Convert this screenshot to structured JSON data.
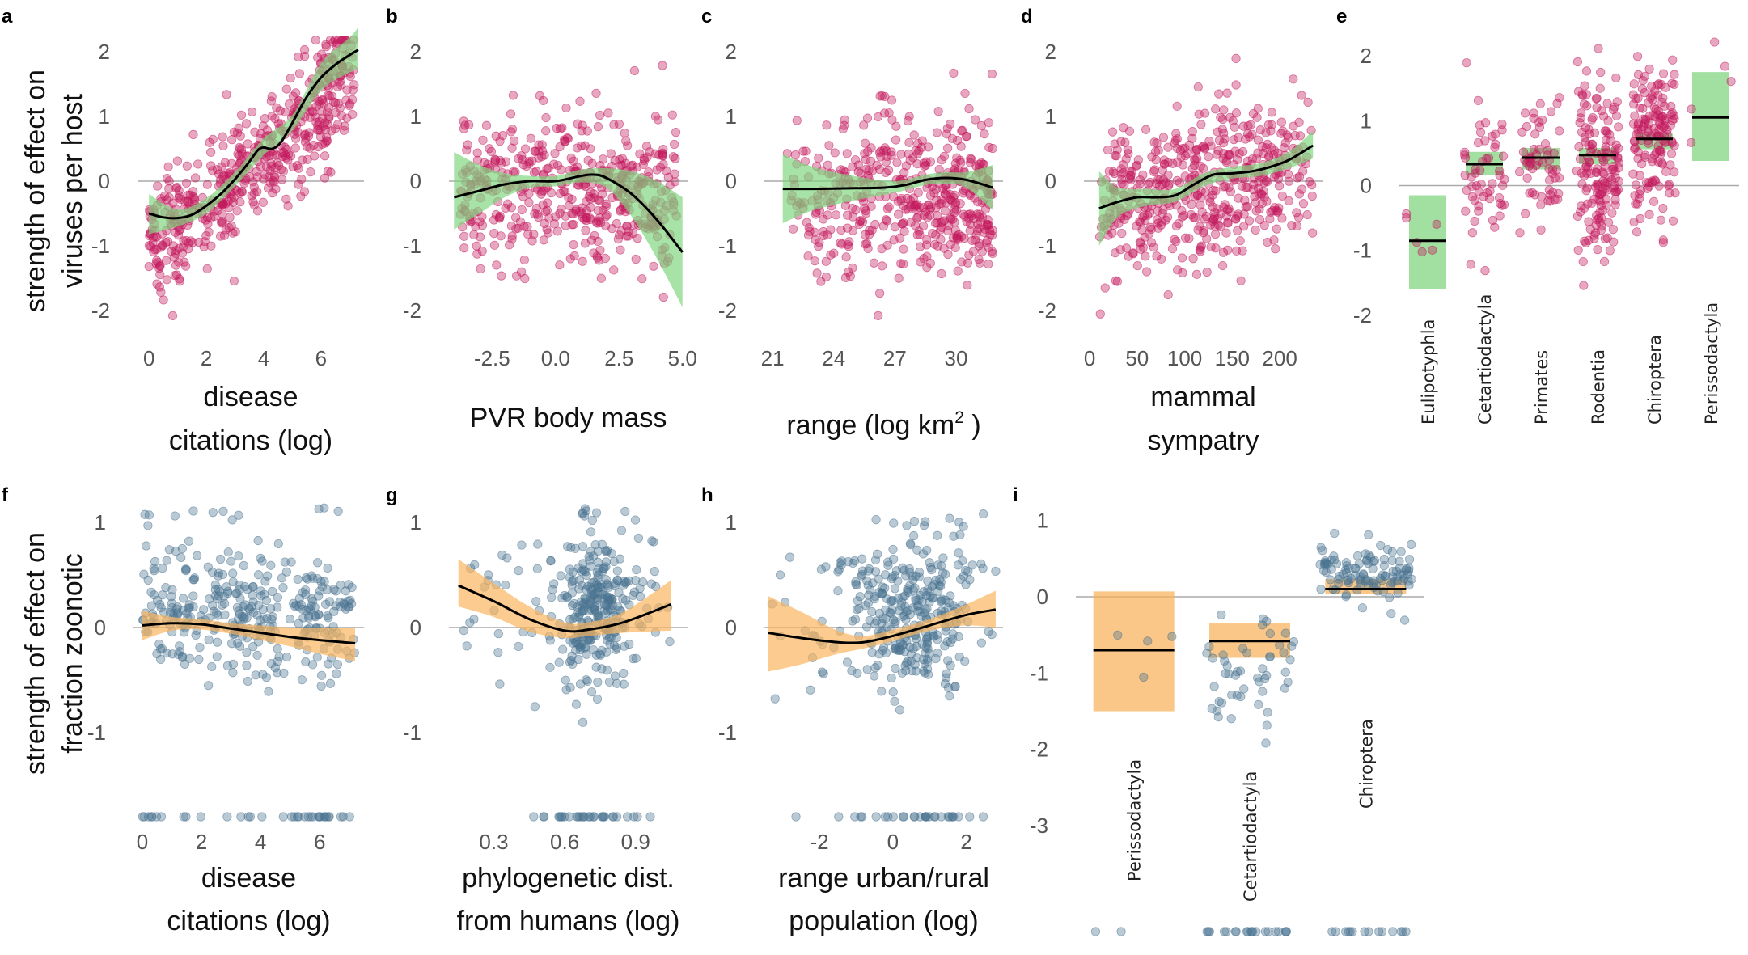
{
  "colors": {
    "top_points": "#c2185b",
    "top_band": "#7ed47e",
    "bottom_points": "#4a7390",
    "bottom_band": "#f9b25a",
    "fit_line": "#000000",
    "zero_line": "#aaaaaa"
  },
  "row_labels": {
    "top": [
      "strength of effect on",
      "viruses per host"
    ],
    "bottom": [
      "strength of effect on",
      "fraction zoonotic"
    ]
  },
  "chart_data": [
    {
      "id": "a",
      "panel_label": "a",
      "type": "scatter",
      "row": "top",
      "xlabel_lines": [
        "disease",
        "citations (log)"
      ],
      "xlim": [
        -0.4,
        7.5
      ],
      "ylim": [
        -2.2,
        2.3
      ],
      "xticks": [
        0,
        2,
        4,
        6
      ],
      "xtick_labels": [
        "0",
        "2",
        "4",
        "6"
      ],
      "yticks": [
        -2,
        -1,
        0,
        1,
        2
      ],
      "ytick_labels": [
        "-2",
        "-1",
        "0",
        "1",
        "2"
      ],
      "fit": {
        "x": [
          0,
          0.5,
          1,
          1.5,
          2,
          2.5,
          3,
          3.5,
          3.8,
          4,
          4.3,
          4.6,
          5,
          5.5,
          6,
          6.5,
          7,
          7.3
        ],
        "y": [
          -0.5,
          -0.56,
          -0.57,
          -0.52,
          -0.38,
          -0.2,
          0.03,
          0.3,
          0.48,
          0.52,
          0.5,
          0.6,
          0.9,
          1.3,
          1.6,
          1.8,
          1.95,
          2.03
        ]
      },
      "band": {
        "x": [
          0,
          1,
          2,
          3,
          4,
          5,
          6,
          7,
          7.3
        ],
        "lower": [
          -0.82,
          -0.7,
          -0.5,
          -0.08,
          0.4,
          0.78,
          1.4,
          1.68,
          1.72
        ],
        "upper": [
          -0.2,
          -0.44,
          -0.26,
          0.14,
          0.66,
          1.02,
          1.82,
          2.22,
          2.38
        ]
      },
      "scatter_trend": {
        "x": [
          0,
          1,
          2,
          3,
          4,
          5,
          6,
          7
        ],
        "y": [
          -0.9,
          -0.75,
          -0.45,
          -0.05,
          0.35,
          0.85,
          1.3,
          1.6
        ]
      },
      "scatter": {
        "n": 520,
        "x_range": [
          0,
          7.2
        ],
        "spread": 0.5
      }
    },
    {
      "id": "b",
      "panel_label": "b",
      "type": "scatter",
      "row": "top",
      "xlabel_lines": [
        "PVR body mass"
      ],
      "xlim": [
        -4.2,
        5.2
      ],
      "ylim": [
        -2.2,
        2.3
      ],
      "xticks": [
        -2.5,
        0.0,
        2.5,
        5.0
      ],
      "xtick_labels": [
        "-2.5",
        "0.0",
        "2.5",
        "5.0"
      ],
      "yticks": [
        -2,
        -1,
        0,
        1,
        2
      ],
      "ytick_labels": [
        "-2",
        "-1",
        "0",
        "1",
        "2"
      ],
      "fit": {
        "x": [
          -4,
          -3,
          -2,
          -1,
          0,
          1,
          1.5,
          2,
          3,
          4,
          5
        ],
        "y": [
          -0.25,
          -0.15,
          -0.05,
          0.0,
          0.0,
          0.08,
          0.1,
          0.05,
          -0.2,
          -0.6,
          -1.1
        ]
      },
      "band": {
        "x": [
          -4,
          -3,
          -2,
          -1,
          0,
          1,
          2,
          3,
          4,
          5
        ],
        "lower": [
          -0.75,
          -0.5,
          -0.25,
          -0.1,
          -0.08,
          -0.02,
          -0.1,
          -0.55,
          -1.2,
          -1.95
        ],
        "upper": [
          0.45,
          0.25,
          0.12,
          0.08,
          0.08,
          0.18,
          0.2,
          0.15,
          0.0,
          -0.25
        ]
      },
      "scatter_trend": {
        "x": [
          -3,
          -1,
          0,
          1,
          3
        ],
        "y": [
          -0.1,
          -0.1,
          -0.15,
          -0.05,
          -0.2
        ]
      },
      "scatter": {
        "n": 480,
        "x_range": [
          -3.8,
          4.8
        ],
        "spread": 0.6
      }
    },
    {
      "id": "c",
      "panel_label": "c",
      "type": "scatter",
      "row": "top",
      "xlabel": "range (log km",
      "xlabel_sup": "2",
      "xlabel_tail": " )",
      "xlim": [
        20.6,
        32.3
      ],
      "ylim": [
        -2.2,
        2.3
      ],
      "xticks": [
        21,
        24,
        27,
        30
      ],
      "xtick_labels": [
        "21",
        "24",
        "27",
        "30"
      ],
      "yticks": [
        -2,
        -1,
        0,
        1,
        2
      ],
      "ytick_labels": [
        "-2",
        "-1",
        "0",
        "1",
        "2"
      ],
      "fit": {
        "x": [
          21.5,
          23,
          25,
          26.5,
          27.5,
          28.5,
          29.5,
          30.5,
          31.8
        ],
        "y": [
          -0.12,
          -0.12,
          -0.11,
          -0.1,
          -0.06,
          0.02,
          0.05,
          0.02,
          -0.1
        ]
      },
      "band": {
        "x": [
          21.5,
          23,
          25,
          27,
          28.5,
          29.5,
          30.5,
          31.8
        ],
        "lower": [
          -0.65,
          -0.45,
          -0.3,
          -0.18,
          -0.06,
          -0.04,
          -0.1,
          -0.45
        ],
        "upper": [
          0.42,
          0.22,
          0.08,
          0.0,
          0.1,
          0.14,
          0.14,
          0.25
        ]
      },
      "scatter_trend": {
        "x": [
          21.5,
          25,
          28,
          30,
          31.5
        ],
        "y": [
          -0.2,
          -0.2,
          -0.2,
          -0.25,
          -0.3
        ]
      },
      "scatter": {
        "n": 480,
        "x_range": [
          21.5,
          31.8
        ],
        "spread": 0.6,
        "x_skew": 0.65
      }
    },
    {
      "id": "d",
      "panel_label": "d",
      "type": "scatter",
      "row": "top",
      "xlabel_lines": [
        "mammal",
        "sympatry"
      ],
      "xlim": [
        -6,
        245
      ],
      "ylim": [
        -2.2,
        2.3
      ],
      "xticks": [
        0,
        50,
        100,
        150,
        200
      ],
      "xtick_labels": [
        "0",
        "50",
        "100",
        "150",
        "200"
      ],
      "yticks": [
        -2,
        -1,
        0,
        1,
        2
      ],
      "ytick_labels": [
        "-2",
        "-1",
        "0",
        "1",
        "2"
      ],
      "fit": {
        "x": [
          10,
          30,
          50,
          70,
          90,
          110,
          130,
          150,
          170,
          190,
          210,
          235
        ],
        "y": [
          -0.42,
          -0.32,
          -0.25,
          -0.25,
          -0.22,
          -0.05,
          0.1,
          0.12,
          0.15,
          0.22,
          0.33,
          0.55
        ]
      },
      "band": {
        "x": [
          10,
          30,
          60,
          90,
          120,
          150,
          180,
          210,
          235
        ],
        "lower": [
          -1.0,
          -0.55,
          -0.38,
          -0.32,
          -0.08,
          0.04,
          0.08,
          0.2,
          0.35
        ],
        "upper": [
          0.15,
          -0.1,
          -0.12,
          -0.12,
          0.12,
          0.22,
          0.28,
          0.46,
          0.78
        ]
      },
      "scatter_trend": {
        "x": [
          10,
          60,
          110,
          160,
          210,
          235
        ],
        "y": [
          -0.3,
          -0.35,
          -0.1,
          0.0,
          0.2,
          0.3
        ]
      },
      "scatter": {
        "n": 500,
        "x_range": [
          10,
          235
        ],
        "spread": 0.6
      }
    },
    {
      "id": "e",
      "panel_label": "e",
      "type": "categorical",
      "row": "top",
      "ylim": [
        -2.25,
        2.3
      ],
      "yticks": [
        -2,
        -1,
        0,
        1,
        2
      ],
      "ytick_labels": [
        "-2",
        "-1",
        "0",
        "1",
        "2"
      ],
      "categories": [
        "Eulipotyphla",
        "Cetartiodactyla",
        "Primates",
        "Rodentia",
        "Chiroptera",
        "Perissodactyla"
      ],
      "estimates": [
        -0.85,
        0.33,
        0.43,
        0.47,
        0.72,
        1.05
      ],
      "lower": [
        -1.6,
        0.16,
        0.25,
        0.33,
        0.56,
        0.38
      ],
      "upper": [
        -0.15,
        0.52,
        0.58,
        0.58,
        0.8,
        1.75
      ],
      "point_counts": [
        6,
        55,
        60,
        160,
        150,
        5
      ],
      "point_spread": [
        0.3,
        0.6,
        0.5,
        0.7,
        0.65,
        0.45
      ],
      "point_offset": [
        0.05,
        -0.1,
        0.0,
        -0.15,
        0.0,
        0.0
      ]
    },
    {
      "id": "f",
      "panel_label": "f",
      "type": "scatter",
      "row": "bottom",
      "xlabel_lines": [
        "disease",
        "citations (log)"
      ],
      "xlim": [
        -0.3,
        7.5
      ],
      "ylim": [
        -1.8,
        1.2
      ],
      "xticks": [
        0,
        2,
        4,
        6
      ],
      "xtick_labels": [
        "0",
        "2",
        "4",
        "6"
      ],
      "yticks": [
        -1,
        0,
        1
      ],
      "ytick_labels": [
        "-1",
        "0",
        "1"
      ],
      "fit": {
        "x": [
          0,
          1,
          2,
          3,
          4,
          5,
          6,
          7.2
        ],
        "y": [
          0.02,
          0.04,
          0.03,
          -0.01,
          -0.05,
          -0.09,
          -0.12,
          -0.15
        ]
      },
      "band": {
        "x": [
          0,
          1,
          2,
          3,
          4,
          5,
          6,
          7.2
        ],
        "lower": [
          -0.12,
          -0.03,
          -0.02,
          -0.06,
          -0.12,
          -0.18,
          -0.25,
          -0.32
        ],
        "upper": [
          0.16,
          0.1,
          0.08,
          0.04,
          0.02,
          0.0,
          0.0,
          0.0
        ]
      },
      "scatter_trend": {
        "x": [
          0,
          3,
          7
        ],
        "y": [
          0.2,
          0.15,
          0.05
        ]
      },
      "scatter": {
        "n": 340,
        "x_range": [
          0,
          7.2
        ],
        "spread": 0.3
      },
      "floor_value": -1.8,
      "floor_count": 35,
      "top_value": 1.1,
      "top_count": 10
    },
    {
      "id": "g",
      "panel_label": "g",
      "type": "scatter",
      "row": "bottom",
      "xlabel_lines": [
        "phylogenetic dist.",
        "from humans (log)"
      ],
      "xlim": [
        0.11,
        1.12
      ],
      "ylim": [
        -1.8,
        1.2
      ],
      "xticks": [
        0.3,
        0.6,
        0.9
      ],
      "xtick_labels": [
        "0.3",
        "0.6",
        "0.9"
      ],
      "yticks": [
        -1,
        0,
        1
      ],
      "ytick_labels": [
        "-1",
        "0",
        "1"
      ],
      "fit": {
        "x": [
          0.15,
          0.3,
          0.45,
          0.6,
          0.7,
          0.85,
          1.05
        ],
        "y": [
          0.4,
          0.25,
          0.08,
          -0.03,
          -0.02,
          0.05,
          0.22
        ]
      },
      "band": {
        "x": [
          0.15,
          0.3,
          0.45,
          0.6,
          0.7,
          0.85,
          1.05
        ],
        "lower": [
          0.2,
          0.1,
          -0.04,
          -0.1,
          -0.08,
          -0.05,
          -0.03
        ],
        "upper": [
          0.65,
          0.42,
          0.2,
          0.05,
          0.05,
          0.15,
          0.45
        ]
      },
      "scatter_trend": {
        "x": [
          0.3,
          0.7,
          0.9
        ],
        "y": [
          0.2,
          0.1,
          0.2
        ]
      },
      "scatter": {
        "n": 320,
        "x_range": [
          0.15,
          1.05
        ],
        "spread": 0.35,
        "x_center": 0.72,
        "x_center_spread": 0.07
      },
      "floor_value": -1.8,
      "floor_count": 30,
      "top_value": 1.1,
      "top_count": 6
    },
    {
      "id": "h",
      "panel_label": "h",
      "type": "scatter",
      "row": "bottom",
      "xlabel_lines": [
        "range urban/rural",
        "population (log)"
      ],
      "xlim": [
        -3.5,
        3.0
      ],
      "ylim": [
        -1.8,
        1.2
      ],
      "xticks": [
        -2,
        0,
        2
      ],
      "xtick_labels": [
        "-2",
        "0",
        "2"
      ],
      "yticks": [
        -1,
        0,
        1
      ],
      "ytick_labels": [
        "-1",
        "0",
        "1"
      ],
      "fit": {
        "x": [
          -3.4,
          -2.5,
          -1.5,
          -0.8,
          0,
          1,
          2,
          2.8
        ],
        "y": [
          -0.05,
          -0.1,
          -0.14,
          -0.14,
          -0.08,
          0.02,
          0.12,
          0.17
        ]
      },
      "band": {
        "x": [
          -3.4,
          -2.5,
          -1.5,
          -0.8,
          0,
          1,
          2,
          2.8
        ],
        "lower": [
          -0.42,
          -0.35,
          -0.25,
          -0.2,
          -0.13,
          -0.03,
          0.02,
          0.0
        ],
        "upper": [
          0.3,
          0.15,
          -0.03,
          -0.08,
          -0.02,
          0.08,
          0.22,
          0.35
        ]
      },
      "scatter_trend": {
        "x": [
          -3,
          0,
          2.5
        ],
        "y": [
          0.1,
          0.1,
          0.2
        ]
      },
      "scatter": {
        "n": 330,
        "x_range": [
          -3.3,
          2.8
        ],
        "spread": 0.35,
        "x_center": 0.4,
        "x_center_spread": 0.9
      },
      "floor_value": -1.8,
      "floor_count": 30,
      "top_value": 1.0,
      "top_count": 8
    },
    {
      "id": "i",
      "panel_label": "i",
      "type": "categorical",
      "row": "bottom",
      "ylim": [
        -3.2,
        1.25
      ],
      "yticks": [
        -3,
        -2,
        -1,
        0,
        1
      ],
      "ytick_labels": [
        "-3",
        "-2",
        "-1",
        "0",
        "1"
      ],
      "categories": [
        "Perissodactyla",
        "Cetartiodactyla",
        "Chiroptera"
      ],
      "estimates": [
        -0.7,
        -0.58,
        0.1
      ],
      "lower": [
        -1.5,
        -0.8,
        0.04
      ],
      "upper": [
        0.07,
        -0.35,
        0.23
      ],
      "point_counts": [
        4,
        50,
        110
      ],
      "point_spread": [
        0.5,
        0.45,
        0.18
      ],
      "point_offset": [
        -0.4,
        -0.45,
        0.25
      ],
      "floor_value": -4.3,
      "floor_counts": [
        2,
        20,
        14
      ]
    }
  ]
}
